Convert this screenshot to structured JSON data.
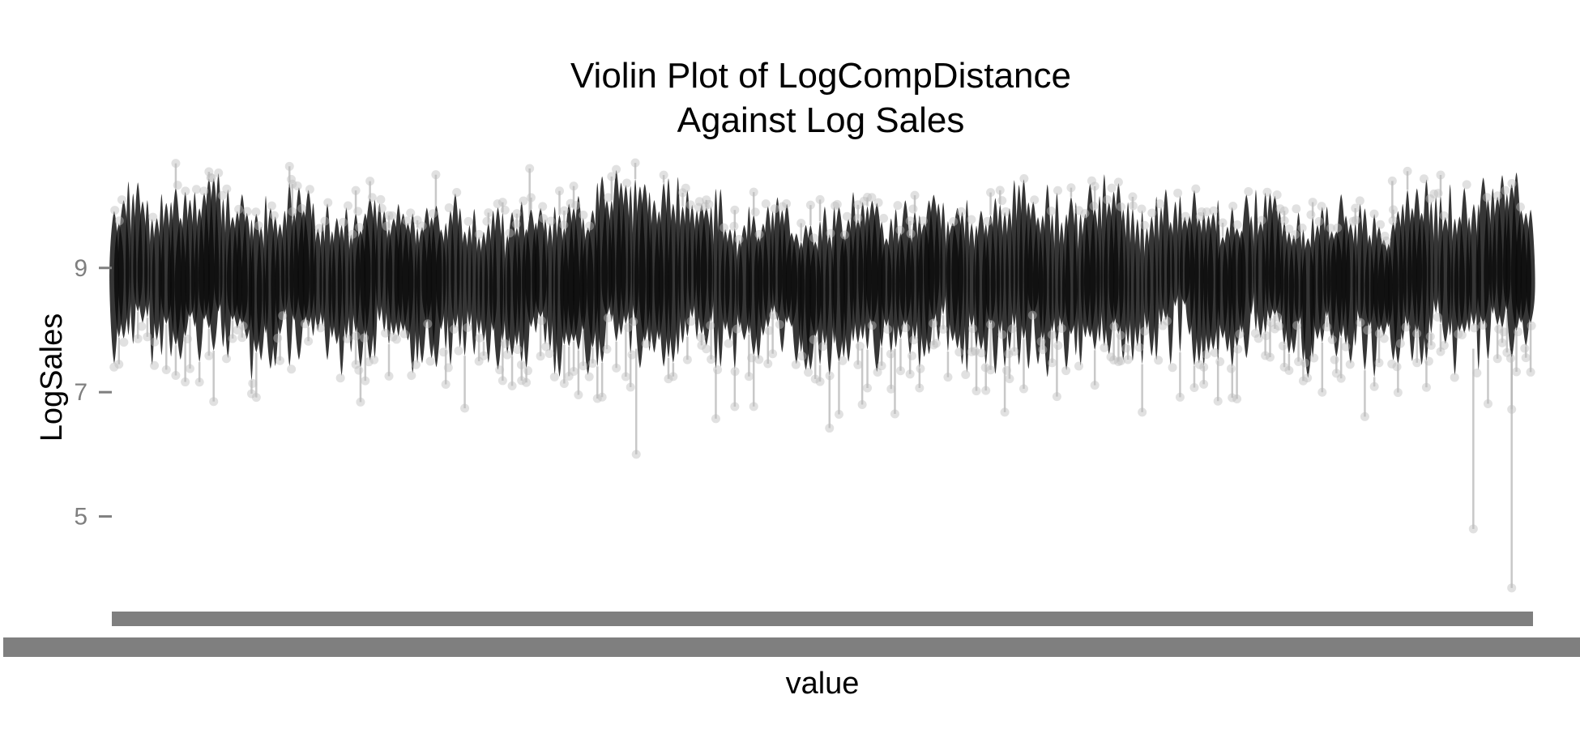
{
  "chart_data": {
    "type": "violin",
    "title": "Violin Plot of LogCompDistance\nAgainst Log Sales",
    "title_lines": [
      "Violin Plot of LogCompDistance",
      "Against Log Sales"
    ],
    "xlabel": "value",
    "ylabel": "LogSales",
    "ylim": [
      3.6,
      10.9
    ],
    "yticks": [
      5,
      7,
      9
    ],
    "ytick_labels": [
      "5",
      "7",
      "9"
    ],
    "x_tick_labels_note": "",
    "grid": false,
    "legend": "none",
    "colors": {
      "violin_fill": "#0a0a0a",
      "tail_line": "#b5b5b5",
      "outlier": "#bdbdbd",
      "axis_tick": "#7f7f7f",
      "bar_band": "#7f7f7f"
    },
    "distribution": {
      "typical_center": 8.8,
      "typical_core_low": 8.2,
      "typical_core_high": 9.5,
      "overall_max": 10.6,
      "overall_min": 3.9,
      "group_count": 300
    },
    "notable_low_outliers": [
      {
        "position": 0.958,
        "value": 4.8
      },
      {
        "position": 0.985,
        "value": 3.85
      },
      {
        "position": 0.369,
        "value": 6.0
      },
      {
        "position": 0.551,
        "value": 6.65
      },
      {
        "position": 0.528,
        "value": 6.8
      }
    ],
    "notable_high_outliers": [
      {
        "position": 0.294,
        "value": 10.6
      },
      {
        "position": 0.228,
        "value": 10.5
      },
      {
        "position": 0.127,
        "value": 10.35
      },
      {
        "position": 0.901,
        "value": 10.4
      }
    ]
  }
}
